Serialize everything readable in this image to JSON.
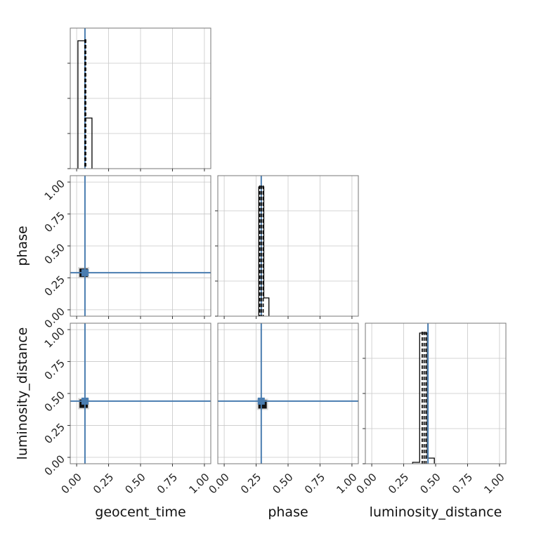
{
  "chart_data": {
    "type": "corner",
    "parameters": [
      "geocent_time",
      "phase",
      "luminosity_distance"
    ],
    "axis_range": [
      -0.05,
      1.05
    ],
    "tick_values": [
      0.0,
      0.25,
      0.5,
      0.75,
      1.0
    ],
    "tick_labels": [
      "0.00",
      "0.25",
      "0.50",
      "0.75",
      "1.00"
    ],
    "xlabels": [
      "geocent_time",
      "phase",
      "luminosity_distance"
    ],
    "ylabels": [
      "",
      "phase",
      "luminosity_distance"
    ],
    "grid": true,
    "truth_color": "#4a7db0",
    "truths": {
      "geocent_time": 0.065,
      "phase": 0.29,
      "luminosity_distance": 0.44
    },
    "histograms": [
      {
        "parameter": "geocent_time",
        "bin_edges": [
          0.01,
          0.065,
          0.12
        ],
        "heights": [
          0.91,
          0.36
        ],
        "ymax": 1.0,
        "quantiles": [
          0.065,
          0.068,
          0.071
        ]
      },
      {
        "parameter": "phase",
        "bin_edges": [
          0.27,
          0.31,
          0.35
        ],
        "heights": [
          0.92,
          0.13
        ],
        "ymax": 1.0,
        "quantiles": [
          0.278,
          0.29,
          0.305
        ]
      },
      {
        "parameter": "luminosity_distance",
        "bin_edges": [
          0.32,
          0.375,
          0.435,
          0.49
        ],
        "heights": [
          0.01,
          0.93,
          0.04
        ],
        "ymax": 1.0,
        "quantiles": [
          0.395,
          0.41,
          0.425
        ]
      }
    ],
    "scatter": [
      {
        "x": "geocent_time",
        "y": "phase",
        "center": [
          0.055,
          0.29
        ]
      },
      {
        "x": "geocent_time",
        "y": "luminosity_distance",
        "center": [
          0.055,
          0.42
        ]
      },
      {
        "x": "phase",
        "y": "luminosity_distance",
        "center": [
          0.3,
          0.415
        ]
      }
    ]
  }
}
